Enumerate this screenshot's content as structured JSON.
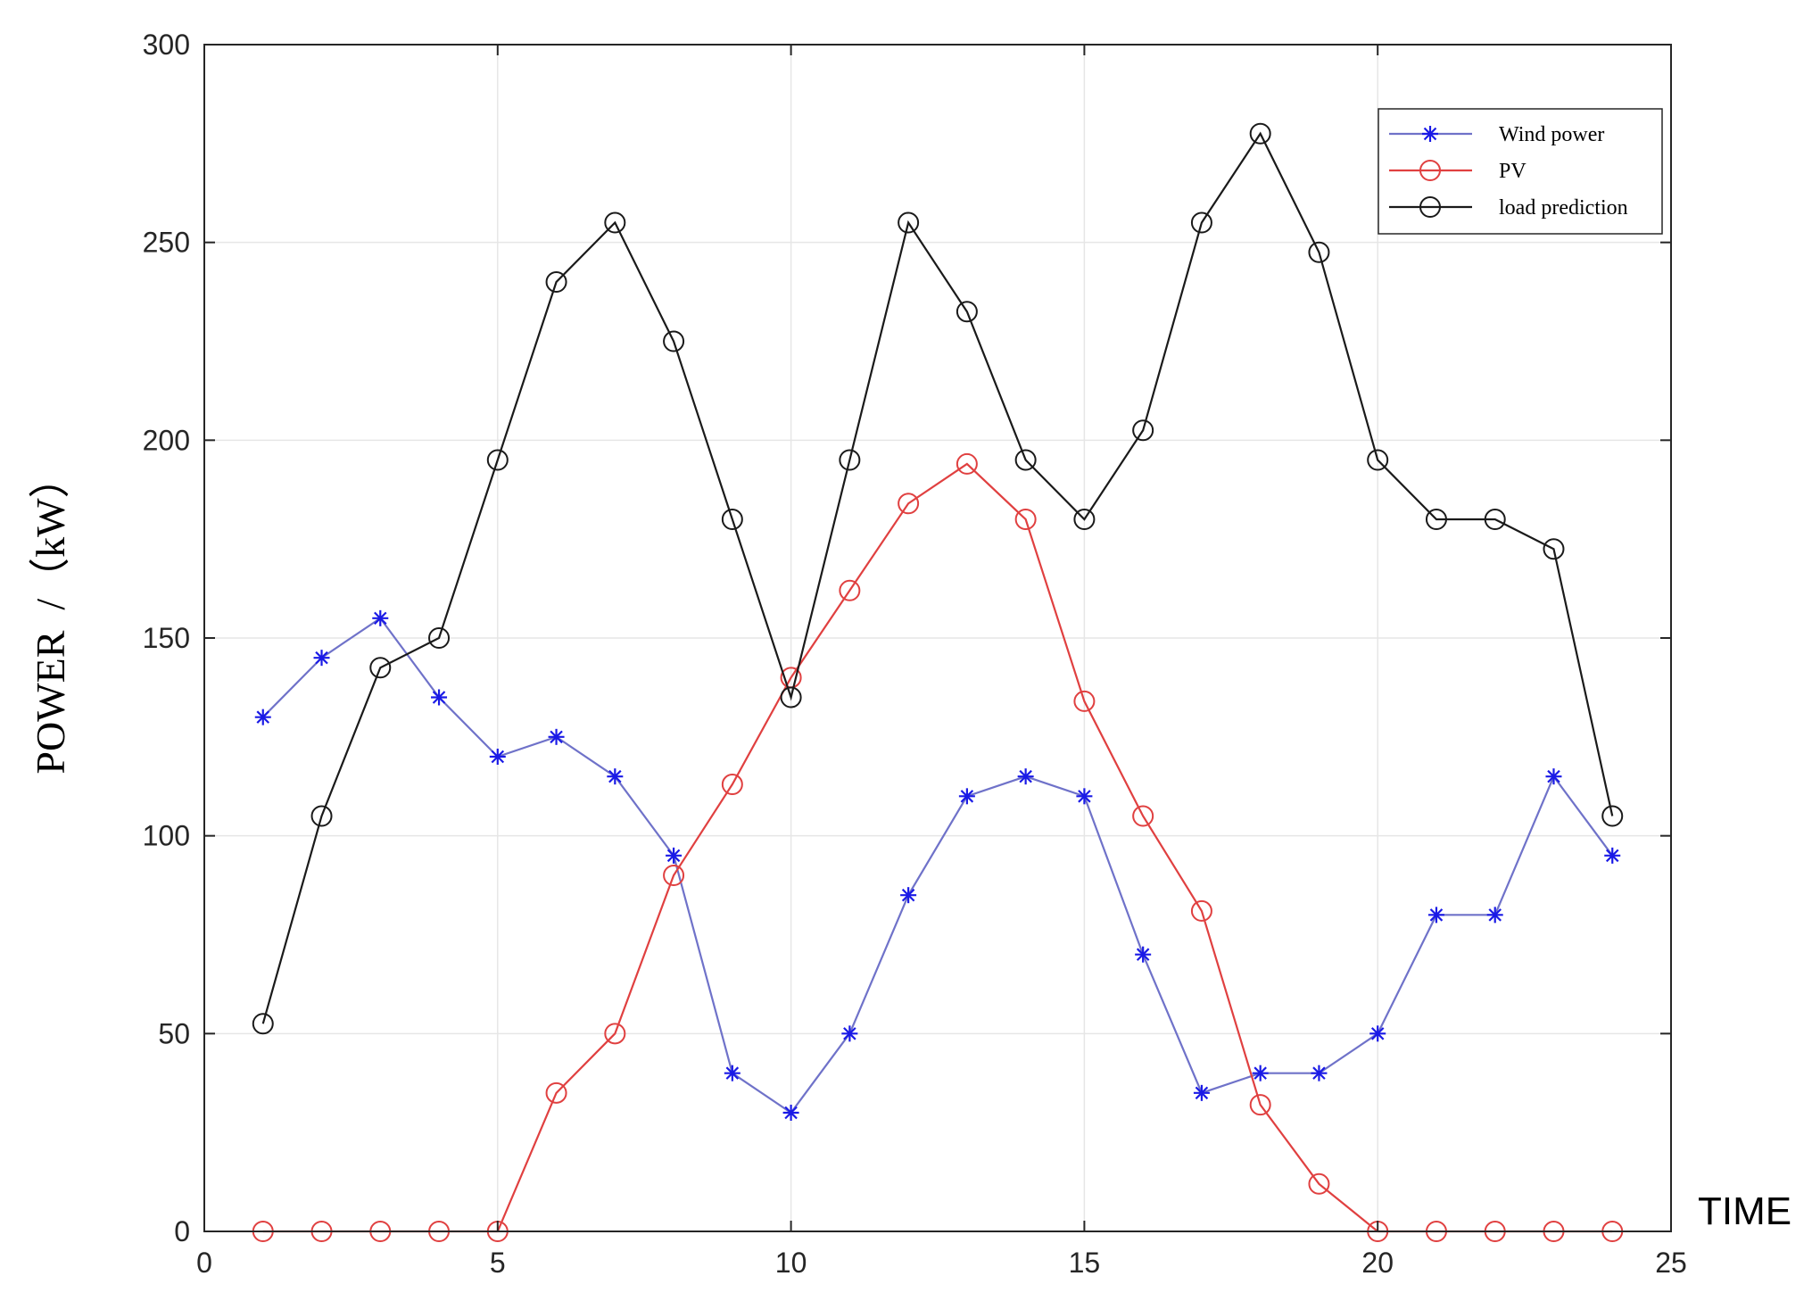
{
  "chart_data": {
    "type": "line",
    "title": "",
    "xlabel": "TIME",
    "ylabel": "POWER  /（kW）",
    "xlim": [
      0,
      25
    ],
    "ylim": [
      0,
      300
    ],
    "xticks": [
      0,
      5,
      10,
      15,
      20,
      25
    ],
    "yticks": [
      0,
      50,
      100,
      150,
      200,
      250,
      300
    ],
    "grid": true,
    "legend_position": "top-right",
    "x": [
      1,
      2,
      3,
      4,
      5,
      6,
      7,
      8,
      9,
      10,
      11,
      12,
      13,
      14,
      15,
      16,
      17,
      18,
      19,
      20,
      21,
      22,
      23,
      24
    ],
    "series": [
      {
        "name": "Wind power",
        "color": "#1a1ae6",
        "line_color": "#6f72c9",
        "marker": "asterisk",
        "values": [
          130,
          145,
          155,
          135,
          120,
          125,
          115,
          95,
          40,
          30,
          50,
          85,
          110,
          115,
          110,
          70,
          35,
          40,
          40,
          50,
          80,
          80,
          115,
          95
        ]
      },
      {
        "name": "PV",
        "color": "#e04040",
        "line_color": "#e04040",
        "marker": "circle",
        "values": [
          0,
          0,
          0,
          0,
          0,
          35,
          50,
          90,
          113,
          140,
          162,
          184,
          194,
          180,
          134,
          105,
          81,
          32,
          12,
          0,
          0,
          0,
          0,
          0
        ]
      },
      {
        "name": "load prediction",
        "color": "#1a1a1a",
        "line_color": "#1a1a1a",
        "marker": "circle",
        "values": [
          52.5,
          105,
          142.5,
          150,
          195,
          240,
          255,
          225,
          180,
          135,
          195,
          255,
          232.5,
          195,
          180,
          202.5,
          255,
          277.5,
          247.5,
          195,
          180,
          180,
          172.5,
          105
        ]
      }
    ]
  }
}
